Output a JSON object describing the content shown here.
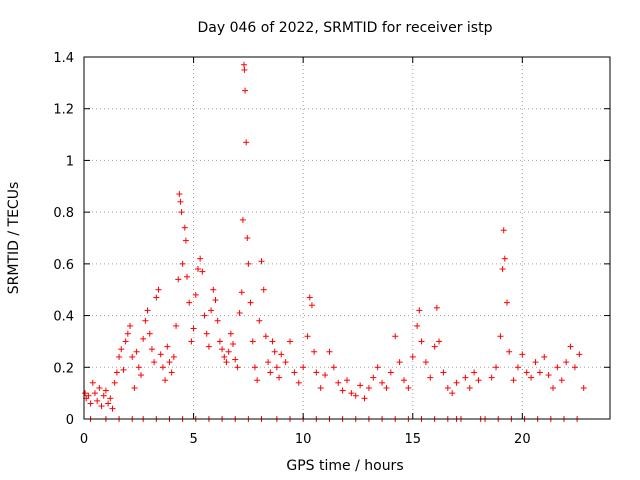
{
  "chart_data": {
    "type": "scatter",
    "title": "Day 046 of 2022, SRMTID for receiver istp",
    "xlabel": "GPS time / hours",
    "ylabel": "SRMTID / TECUs",
    "xlim": [
      0,
      24
    ],
    "ylim": [
      0,
      1.4
    ],
    "x_ticks": [
      0,
      5,
      10,
      15,
      20
    ],
    "x_tick_labels": [
      "0",
      "5",
      "10",
      "15",
      "20"
    ],
    "y_ticks": [
      0,
      0.2,
      0.4,
      0.6,
      0.8,
      1.0,
      1.2,
      1.4
    ],
    "y_tick_labels": [
      "0",
      "0.2",
      "0.4",
      "0.6",
      "0.8",
      "1",
      "1.2",
      "1.4"
    ],
    "grid": true,
    "marker": "+",
    "color": "#ff0000",
    "series": [
      {
        "name": "SRMTID",
        "data_range_hours": [
          0,
          22.8
        ],
        "points": [
          [
            0.05,
            0.1
          ],
          [
            0.1,
            0.08
          ],
          [
            0.2,
            0.09
          ],
          [
            0.3,
            0.06
          ],
          [
            0.4,
            0.14
          ],
          [
            0.5,
            0.1
          ],
          [
            0.6,
            0.07
          ],
          [
            0.7,
            0.12
          ],
          [
            0.8,
            0.05
          ],
          [
            0.9,
            0.09
          ],
          [
            1.0,
            0.11
          ],
          [
            1.1,
            0.06
          ],
          [
            1.2,
            0.08
          ],
          [
            1.3,
            0.04
          ],
          [
            1.4,
            0.14
          ],
          [
            1.5,
            0.18
          ],
          [
            1.6,
            0.24
          ],
          [
            1.7,
            0.27
          ],
          [
            1.8,
            0.19
          ],
          [
            1.9,
            0.3
          ],
          [
            2.0,
            0.33
          ],
          [
            2.1,
            0.36
          ],
          [
            2.2,
            0.24
          ],
          [
            2.3,
            0.12
          ],
          [
            2.4,
            0.26
          ],
          [
            2.5,
            0.2
          ],
          [
            2.6,
            0.17
          ],
          [
            2.7,
            0.31
          ],
          [
            2.8,
            0.38
          ],
          [
            2.9,
            0.42
          ],
          [
            3.0,
            0.33
          ],
          [
            3.1,
            0.27
          ],
          [
            3.2,
            0.22
          ],
          [
            3.3,
            0.47
          ],
          [
            3.4,
            0.5
          ],
          [
            3.5,
            0.25
          ],
          [
            3.6,
            0.2
          ],
          [
            3.7,
            0.15
          ],
          [
            3.8,
            0.28
          ],
          [
            3.9,
            0.22
          ],
          [
            4.0,
            0.18
          ],
          [
            4.1,
            0.24
          ],
          [
            4.2,
            0.36
          ],
          [
            4.3,
            0.54
          ],
          [
            4.35,
            0.87
          ],
          [
            4.4,
            0.84
          ],
          [
            4.45,
            0.8
          ],
          [
            4.5,
            0.6
          ],
          [
            4.6,
            0.74
          ],
          [
            4.65,
            0.69
          ],
          [
            4.7,
            0.55
          ],
          [
            4.8,
            0.45
          ],
          [
            4.9,
            0.3
          ],
          [
            5.0,
            0.35
          ],
          [
            5.1,
            0.48
          ],
          [
            5.2,
            0.58
          ],
          [
            5.3,
            0.62
          ],
          [
            5.4,
            0.57
          ],
          [
            5.5,
            0.4
          ],
          [
            5.6,
            0.33
          ],
          [
            5.7,
            0.28
          ],
          [
            5.8,
            0.42
          ],
          [
            5.9,
            0.5
          ],
          [
            6.0,
            0.46
          ],
          [
            6.1,
            0.38
          ],
          [
            6.2,
            0.3
          ],
          [
            6.3,
            0.27
          ],
          [
            6.4,
            0.24
          ],
          [
            6.5,
            0.22
          ],
          [
            6.6,
            0.26
          ],
          [
            6.7,
            0.33
          ],
          [
            6.8,
            0.29
          ],
          [
            6.9,
            0.23
          ],
          [
            7.0,
            0.2
          ],
          [
            7.1,
            0.41
          ],
          [
            7.2,
            0.49
          ],
          [
            7.25,
            0.77
          ],
          [
            7.3,
            1.37
          ],
          [
            7.32,
            1.35
          ],
          [
            7.35,
            1.27
          ],
          [
            7.4,
            1.07
          ],
          [
            7.45,
            0.7
          ],
          [
            7.5,
            0.6
          ],
          [
            7.6,
            0.45
          ],
          [
            7.7,
            0.3
          ],
          [
            7.8,
            0.2
          ],
          [
            7.9,
            0.15
          ],
          [
            8.0,
            0.38
          ],
          [
            8.1,
            0.61
          ],
          [
            8.2,
            0.5
          ],
          [
            8.3,
            0.32
          ],
          [
            8.4,
            0.22
          ],
          [
            8.5,
            0.18
          ],
          [
            8.6,
            0.3
          ],
          [
            8.7,
            0.26
          ],
          [
            8.8,
            0.2
          ],
          [
            8.9,
            0.16
          ],
          [
            9.0,
            0.25
          ],
          [
            9.2,
            0.22
          ],
          [
            9.4,
            0.3
          ],
          [
            9.6,
            0.18
          ],
          [
            9.8,
            0.14
          ],
          [
            10.0,
            0.2
          ],
          [
            10.2,
            0.32
          ],
          [
            10.3,
            0.47
          ],
          [
            10.4,
            0.44
          ],
          [
            10.5,
            0.26
          ],
          [
            10.6,
            0.18
          ],
          [
            10.8,
            0.12
          ],
          [
            11.0,
            0.17
          ],
          [
            11.2,
            0.26
          ],
          [
            11.4,
            0.2
          ],
          [
            11.6,
            0.14
          ],
          [
            11.8,
            0.11
          ],
          [
            12.0,
            0.15
          ],
          [
            12.2,
            0.1
          ],
          [
            12.4,
            0.09
          ],
          [
            12.6,
            0.13
          ],
          [
            12.8,
            0.08
          ],
          [
            13.0,
            0.12
          ],
          [
            13.2,
            0.16
          ],
          [
            13.4,
            0.2
          ],
          [
            13.6,
            0.14
          ],
          [
            13.8,
            0.12
          ],
          [
            14.0,
            0.18
          ],
          [
            14.2,
            0.32
          ],
          [
            14.4,
            0.22
          ],
          [
            14.6,
            0.15
          ],
          [
            14.8,
            0.12
          ],
          [
            15.0,
            0.24
          ],
          [
            15.2,
            0.36
          ],
          [
            15.3,
            0.42
          ],
          [
            15.4,
            0.3
          ],
          [
            15.6,
            0.22
          ],
          [
            15.8,
            0.16
          ],
          [
            16.0,
            0.28
          ],
          [
            16.1,
            0.43
          ],
          [
            16.2,
            0.3
          ],
          [
            16.4,
            0.18
          ],
          [
            16.6,
            0.12
          ],
          [
            16.8,
            0.1
          ],
          [
            17.0,
            0.14
          ],
          [
            17.4,
            0.16
          ],
          [
            17.6,
            0.12
          ],
          [
            17.8,
            0.18
          ],
          [
            18.0,
            0.15
          ],
          [
            18.6,
            0.16
          ],
          [
            18.8,
            0.2
          ],
          [
            19.0,
            0.32
          ],
          [
            19.1,
            0.58
          ],
          [
            19.15,
            0.73
          ],
          [
            19.2,
            0.62
          ],
          [
            19.3,
            0.45
          ],
          [
            19.4,
            0.26
          ],
          [
            19.6,
            0.15
          ],
          [
            19.8,
            0.2
          ],
          [
            20.0,
            0.25
          ],
          [
            20.2,
            0.18
          ],
          [
            20.4,
            0.16
          ],
          [
            20.6,
            0.22
          ],
          [
            20.8,
            0.18
          ],
          [
            21.0,
            0.24
          ],
          [
            21.2,
            0.17
          ],
          [
            21.4,
            0.12
          ],
          [
            21.6,
            0.2
          ],
          [
            21.8,
            0.15
          ],
          [
            22.0,
            0.22
          ],
          [
            22.2,
            0.28
          ],
          [
            22.4,
            0.2
          ],
          [
            22.6,
            0.25
          ],
          [
            22.8,
            0.12
          ]
        ]
      }
    ],
    "zero_markers_hours": [
      0.3,
      1.0,
      1.6,
      2.2,
      2.7,
      3.3,
      3.9,
      4.5,
      5.1,
      5.7,
      6.3,
      6.9,
      7.5,
      8.1,
      8.8,
      9.4,
      10.0,
      10.6,
      11.2,
      11.8,
      12.4,
      13.0,
      13.6,
      14.2,
      14.8,
      15.4,
      16.0,
      16.6,
      17.0,
      17.2,
      18.1,
      18.3,
      18.9,
      19.5,
      20.1,
      20.7,
      21.3,
      21.9,
      22.5
    ]
  }
}
